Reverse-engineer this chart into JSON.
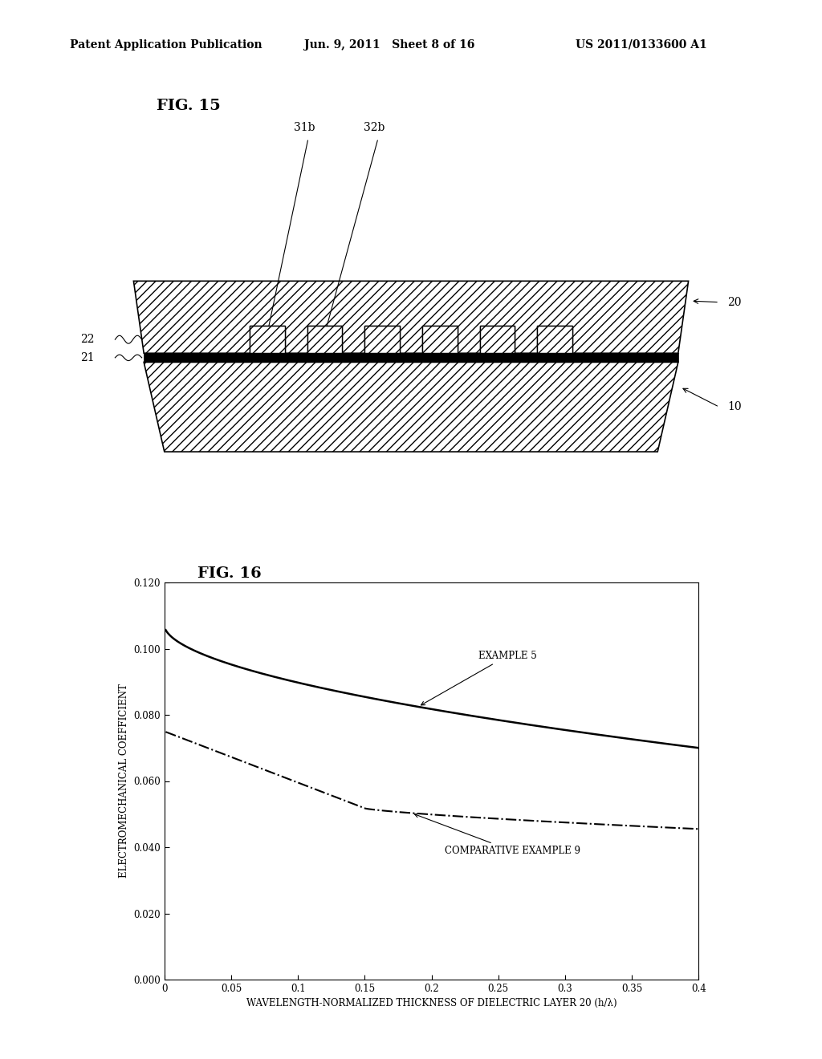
{
  "page_title_left": "Patent Application Publication",
  "page_title_mid": "Jun. 9, 2011   Sheet 8 of 16",
  "page_title_right": "US 2011/0133600 A1",
  "fig15_label": "FIG. 15",
  "fig16_label": "FIG. 16",
  "label_31b": "31b",
  "label_32b": "32b",
  "label_20": "20",
  "label_22": "22",
  "label_21": "21",
  "label_10": "10",
  "xlabel": "WAVELENGTH-NORMALIZED THICKNESS OF DIELECTRIC LAYER 20 (h/λ)",
  "ylabel": "ELECTROMECHANICAL COEFFICIENT",
  "xlim": [
    0,
    0.4
  ],
  "ylim": [
    0.0,
    0.12
  ],
  "xticks": [
    0,
    0.05,
    0.1,
    0.15,
    0.2,
    0.25,
    0.3,
    0.35,
    0.4
  ],
  "xticklabels": [
    "0",
    "0.05",
    "0.1",
    "0.15",
    "0.2",
    "0.25",
    "0.3",
    "0.35",
    "0.4"
  ],
  "yticks": [
    0.0,
    0.02,
    0.04,
    0.06,
    0.08,
    0.1,
    0.12
  ],
  "yticklabels": [
    "0.000",
    "0.020",
    "0.040",
    "0.060",
    "0.080",
    "0.100",
    "0.120"
  ],
  "example5_label": "EXAMPLE 5",
  "comp9_label": "COMPARATIVE EXAMPLE 9",
  "bg_color": "#ffffff",
  "line_color": "#000000"
}
